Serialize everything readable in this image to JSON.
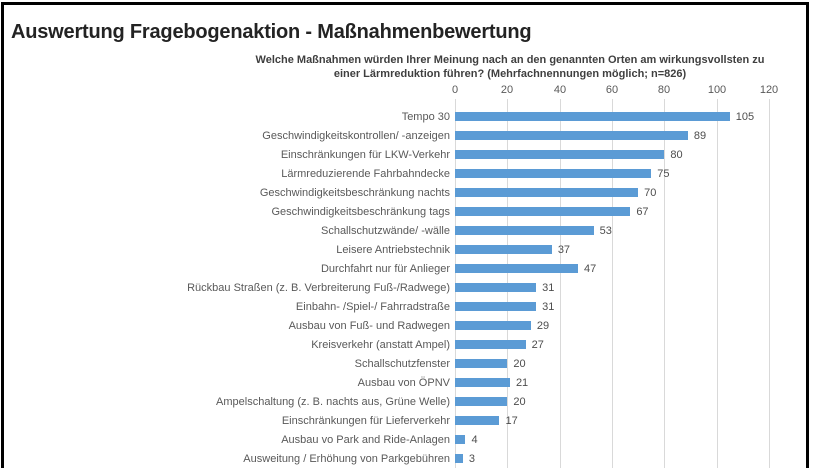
{
  "page": {
    "title": "Auswertung Fragebogenaktion - Maßnahmenbewertung"
  },
  "chart_data": {
    "type": "bar",
    "orientation": "horizontal",
    "title": "Welche Maßnahmen würden Ihrer Meinung nach an den genannten Orten am wirkungsvollsten zu einer Lärmreduktion führen? (Mehrfachnennungen möglich; n=826)",
    "title_lines": [
      "Welche Maßnahmen würden Ihrer Meinung nach an den genannten Orten am wirkungsvollsten zu",
      "einer Lärmreduktion führen? (Mehrfachnennungen möglich; n=826)"
    ],
    "categories": [
      "Tempo 30",
      "Geschwindigkeitskontrollen/ -anzeigen",
      "Einschränkungen für LKW-Verkehr",
      "Lärmreduzierende Fahrbahndecke",
      "Geschwindigkeitsbeschränkung nachts",
      "Geschwindigkeitsbeschränkung tags",
      "Schallschutzwände/ -wälle",
      "Leisere Antriebstechnik",
      "Durchfahrt nur für Anlieger",
      "Rückbau Straßen (z. B. Verbreiterung Fuß-/Radwege)",
      "Einbahn- /Spiel-/ Fahrradstraße",
      "Ausbau von Fuß- und Radwegen",
      "Kreisverkehr (anstatt Ampel)",
      "Schallschutzfenster",
      "Ausbau von ÖPNV",
      "Ampelschaltung (z. B. nachts aus, Grüne Welle)",
      "Einschränkungen für Lieferverkehr",
      "Ausbau vo Park and Ride-Anlagen",
      "Ausweitung / Erhöhung von Parkgebühren"
    ],
    "values": [
      105,
      89,
      80,
      75,
      70,
      67,
      53,
      37,
      47,
      31,
      31,
      29,
      27,
      20,
      21,
      20,
      17,
      4,
      3
    ],
    "xlim": [
      0,
      120
    ],
    "x_ticks": [
      "0",
      "20",
      "40",
      "60",
      "80",
      "100",
      "120"
    ],
    "grid": true,
    "legend": "none",
    "data_labels": true,
    "bar_color": "#5b9bd5",
    "gridline_color": "#d9d9d9",
    "label_color": "#595959"
  }
}
